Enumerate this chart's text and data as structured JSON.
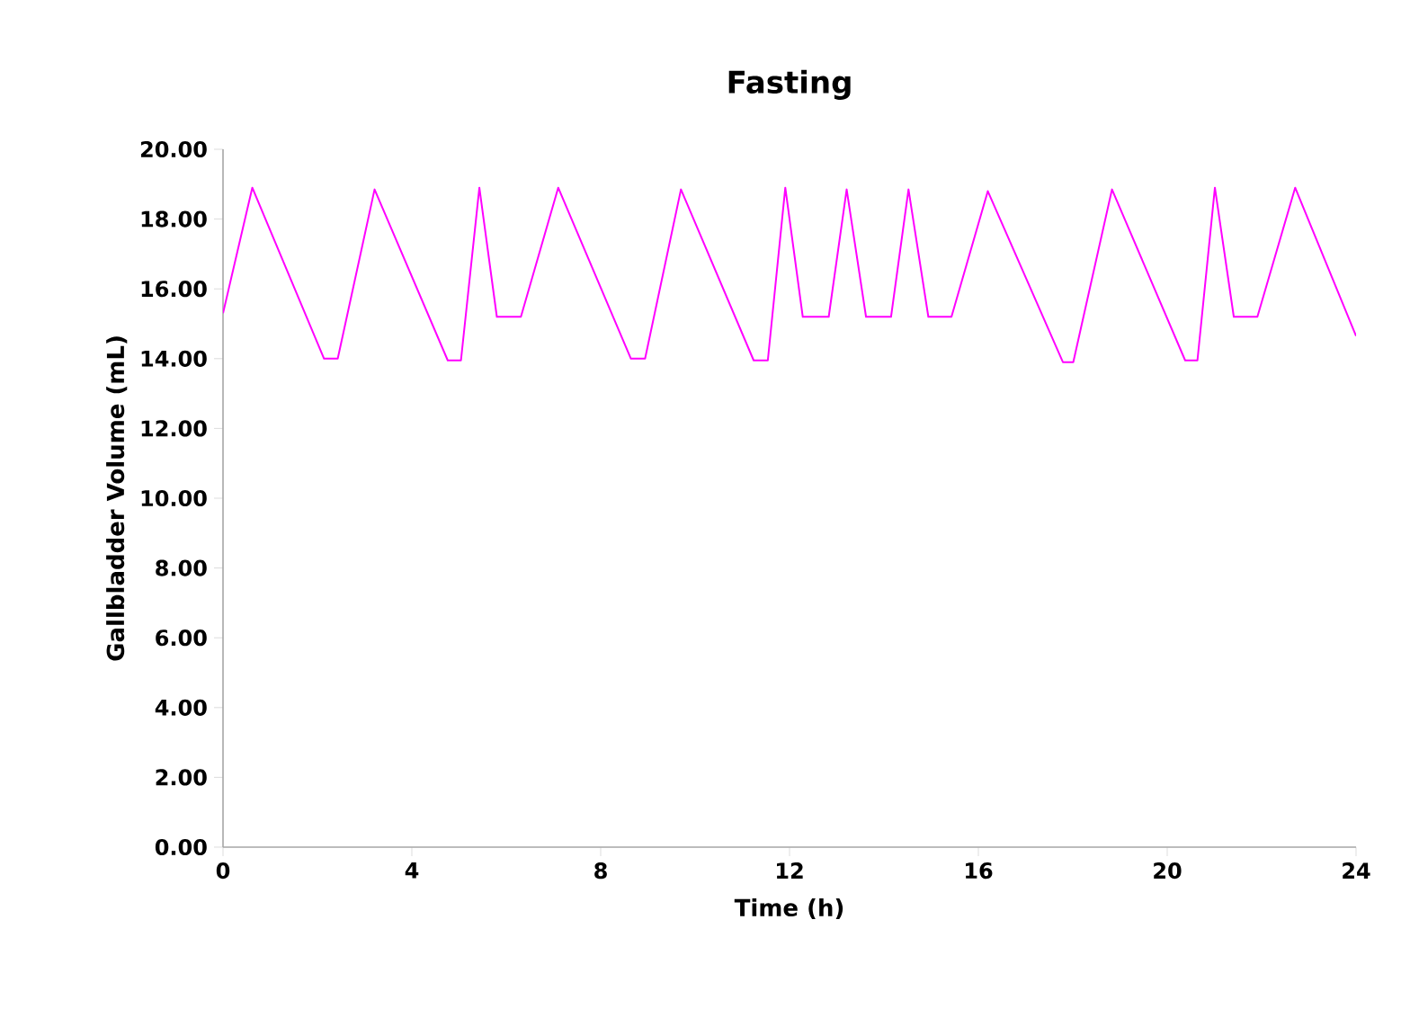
{
  "chart_data": {
    "type": "line",
    "title": "Fasting",
    "xlabel": "Time (h)",
    "ylabel": "Gallbladder Volume (mL)",
    "xlim": [
      0,
      24
    ],
    "xticks": [
      0,
      4,
      8,
      12,
      16,
      20,
      24
    ],
    "ylim": [
      0,
      20
    ],
    "yticks": [
      {
        "value": 0,
        "label": "0.00"
      },
      {
        "value": 2,
        "label": "2.00"
      },
      {
        "value": 4,
        "label": "4.00"
      },
      {
        "value": 6,
        "label": "6.00"
      },
      {
        "value": 8,
        "label": "8.00"
      },
      {
        "value": 10,
        "label": "10.00"
      },
      {
        "value": 12,
        "label": "12.00"
      },
      {
        "value": 14,
        "label": "14.00"
      },
      {
        "value": 16,
        "label": "16.00"
      },
      {
        "value": 18,
        "label": "18.00"
      },
      {
        "value": 20,
        "label": "20.00"
      }
    ],
    "grid": false,
    "marker": "none",
    "line_style": "solid",
    "series": [
      {
        "color": "#ff00ff",
        "x": [
          0,
          0.62,
          2.14,
          2.43,
          3.21,
          4.76,
          5.04,
          5.43,
          5.8,
          6.31,
          7.1,
          8.64,
          8.94,
          9.7,
          11.24,
          11.54,
          11.91,
          12.28,
          12.83,
          13.21,
          13.62,
          14.15,
          14.52,
          14.94,
          15.43,
          16.2,
          17.79,
          18.01,
          18.83,
          20.38,
          20.64,
          21.01,
          21.41,
          21.91,
          22.71,
          24
        ],
        "values": [
          15.3,
          18.9,
          14.0,
          14.0,
          18.85,
          13.95,
          13.95,
          18.9,
          15.2,
          15.2,
          18.9,
          14.0,
          14.0,
          18.85,
          13.95,
          13.95,
          18.9,
          15.2,
          15.2,
          18.85,
          15.2,
          15.2,
          18.85,
          15.2,
          15.2,
          18.8,
          13.9,
          13.9,
          18.85,
          13.95,
          13.95,
          18.9,
          15.2,
          15.2,
          18.9,
          14.65
        ]
      }
    ]
  }
}
